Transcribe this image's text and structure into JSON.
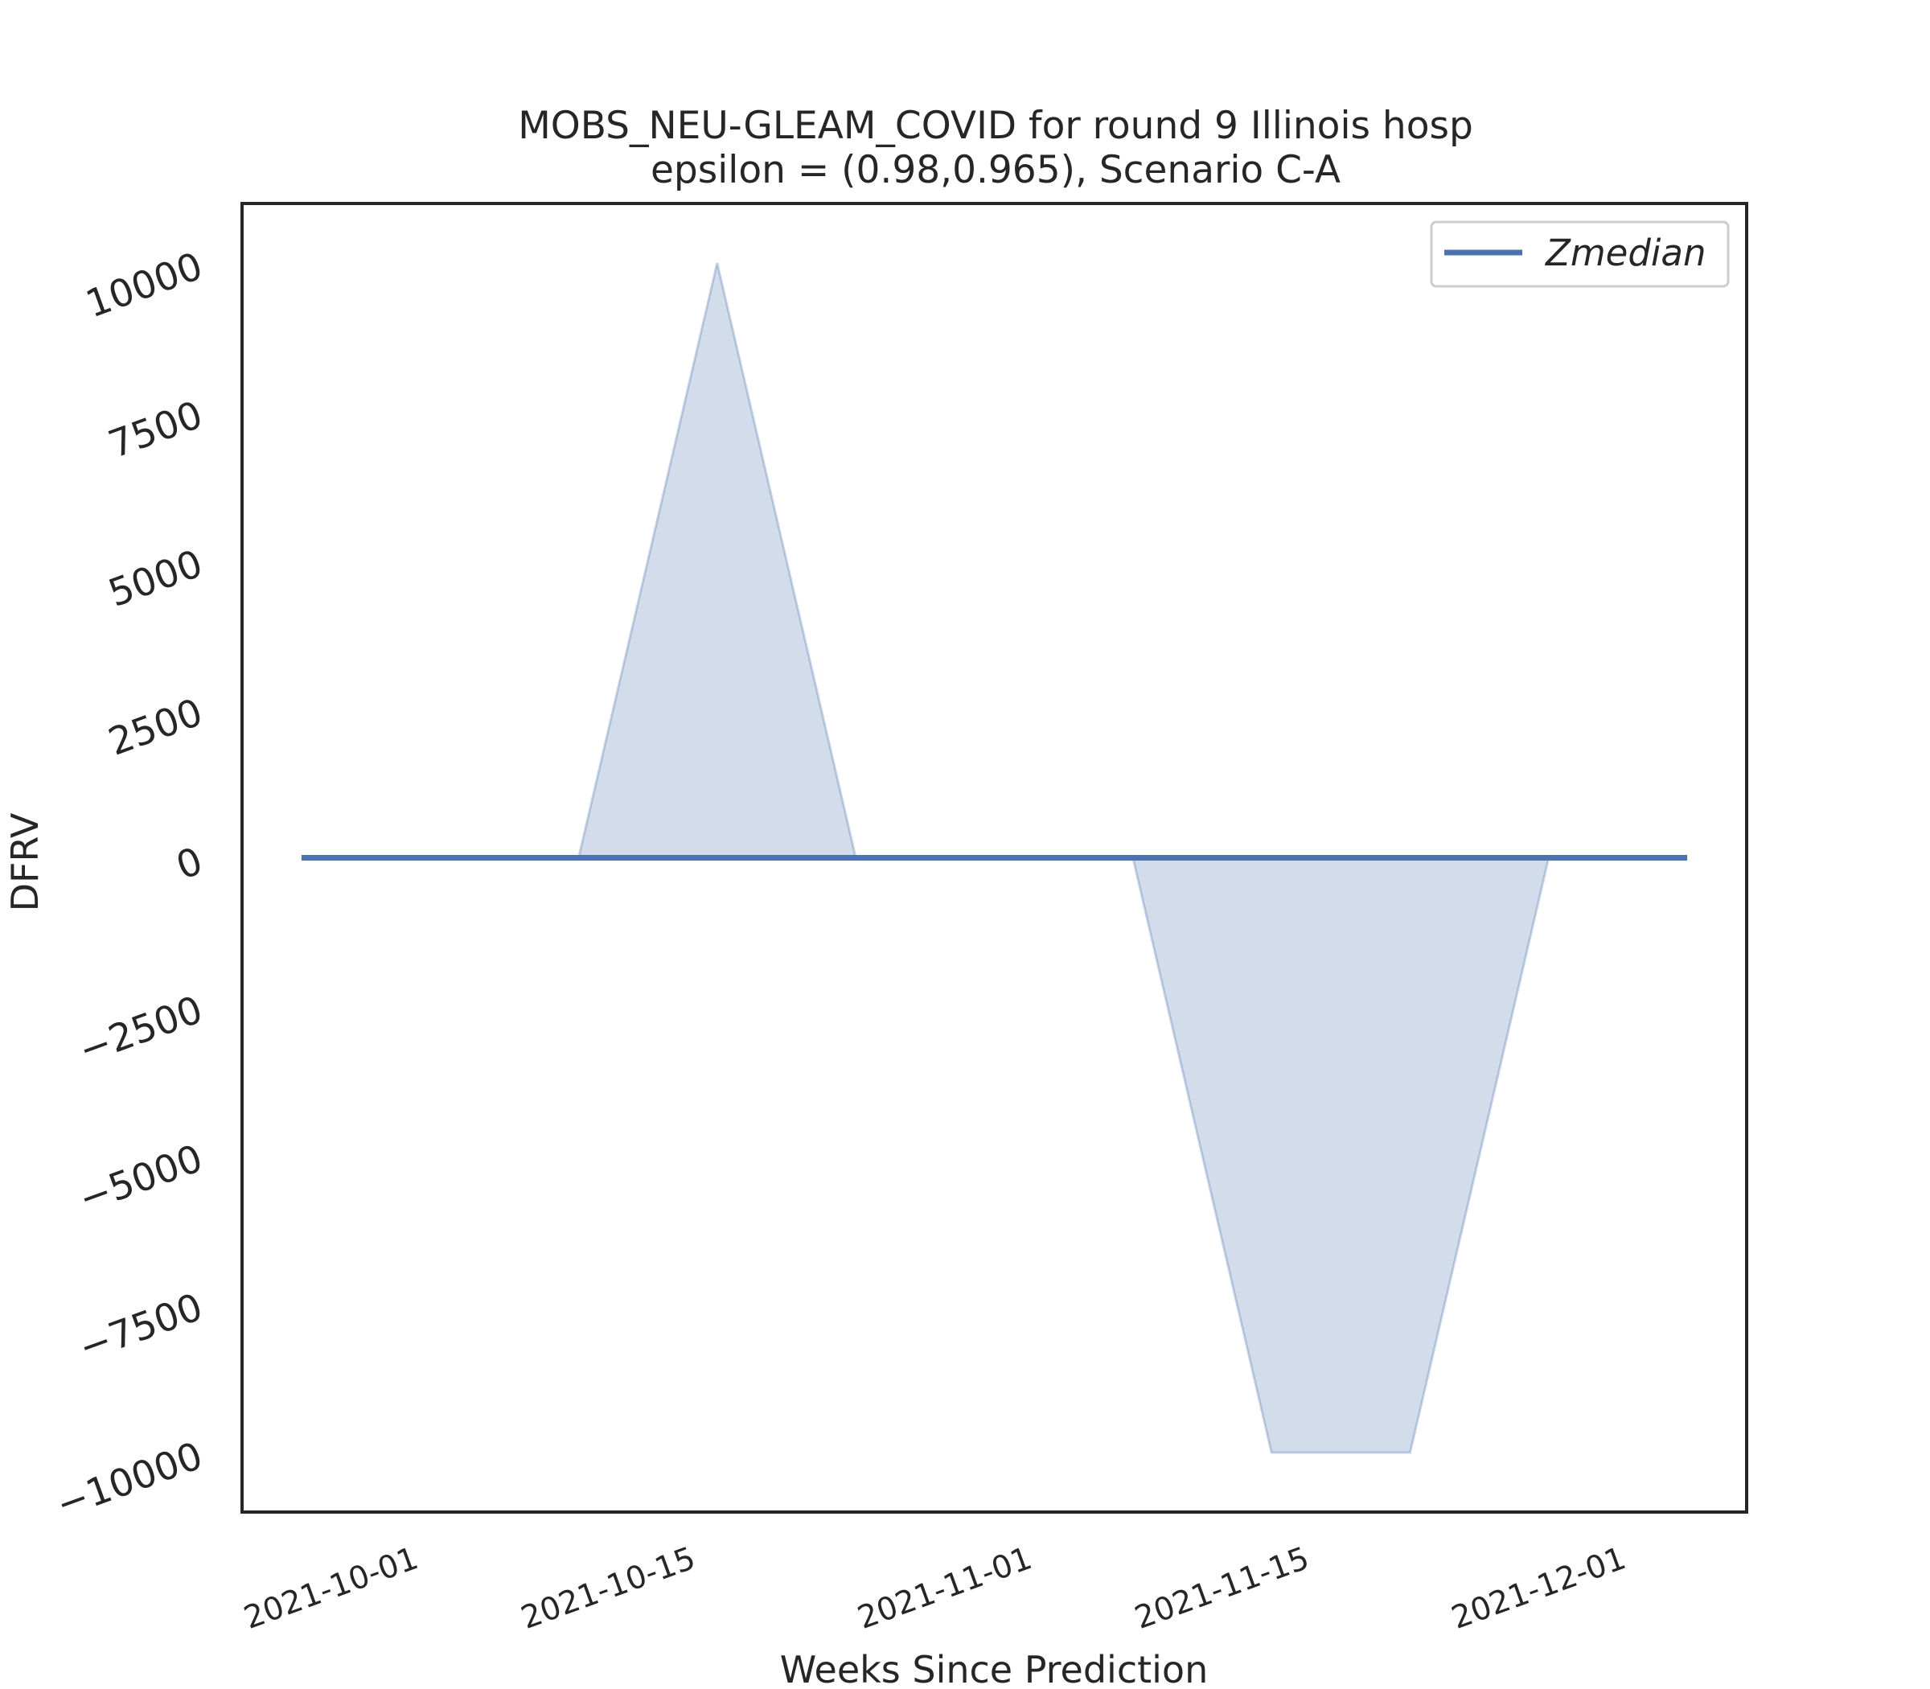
{
  "chart_data": {
    "type": "area",
    "title": "MOBS_NEU-GLEAM_COVID for round 9 Illinois  hosp",
    "subtitle": "epsilon = (0.98,0.965), Scenario C-A",
    "xlabel": "Weeks Since Prediction",
    "ylabel": "DFRV",
    "x": [
      "2021-09-25",
      "2021-10-02",
      "2021-10-09",
      "2021-10-16",
      "2021-10-23",
      "2021-10-30",
      "2021-11-06",
      "2021-11-13",
      "2021-11-20",
      "2021-11-27",
      "2021-12-04"
    ],
    "series": [
      {
        "name": "Zmedian",
        "values": [
          0,
          0,
          0,
          0,
          0,
          0,
          0,
          0,
          0,
          0,
          0
        ]
      }
    ],
    "band": {
      "lower": [
        0,
        0,
        0,
        0,
        0,
        0,
        0,
        -10000,
        -10000,
        0,
        0
      ],
      "upper": [
        0,
        0,
        0,
        10000,
        0,
        0,
        0,
        0,
        0,
        0,
        0
      ]
    },
    "xlim": [
      "2021-09-22",
      "2021-12-07"
    ],
    "ylim": [
      -11000,
      11000
    ],
    "yticks": [
      10000,
      7500,
      5000,
      2500,
      0,
      -2500,
      -5000,
      -7500,
      -10000
    ],
    "ytick_labels": [
      "10000",
      "7500",
      "5000",
      "2500",
      "0",
      "−2500",
      "−5000",
      "−7500",
      "−10000"
    ],
    "xticks": [
      "2021-10-01",
      "2021-10-15",
      "2021-11-01",
      "2021-11-15",
      "2021-12-01"
    ],
    "legend": {
      "entries": [
        "Zmedian"
      ],
      "placement": "top-right"
    },
    "grid": false,
    "colors": {
      "line": "#4c72b0",
      "band": "#4c72b0"
    }
  }
}
